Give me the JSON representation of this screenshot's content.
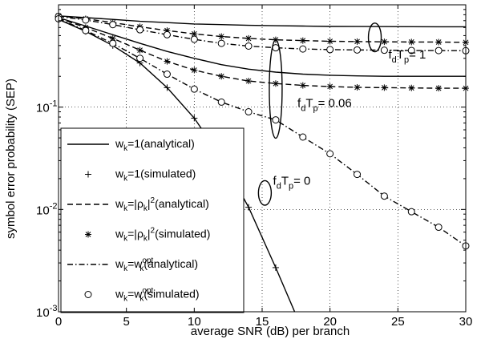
{
  "chart_data": {
    "type": "line",
    "title": "",
    "xlabel": "average SNR (dB) per branch",
    "ylabel": "symbol error probability (SEP)",
    "xlim": [
      0,
      30
    ],
    "ylim": [
      0.001,
      1
    ],
    "yscale": "log",
    "grid": true,
    "x_ticks": [
      "0",
      "5",
      "10",
      "15",
      "20",
      "25",
      "30"
    ],
    "y_ticks": [
      {
        "base": "10",
        "exp": "-3"
      },
      {
        "base": "10",
        "exp": "-2"
      },
      {
        "base": "10",
        "exp": "-1"
      }
    ],
    "legend_position": "bottom-left",
    "series": [
      {
        "name": "w_k=1(analytical)",
        "legend": {
          "a": "w",
          "a_sub": "k",
          "b": "=1(analytical)"
        },
        "style": "solid",
        "marker": "none",
        "group": "wk1",
        "curves": [
          {
            "x": [
              0,
              2,
              4,
              6,
              8,
              10,
              12,
              14,
              16,
              18,
              20,
              22,
              24,
              26,
              28,
              30
            ],
            "y": [
              0.78,
              0.75,
              0.72,
              0.69,
              0.67,
              0.65,
              0.64,
              0.63,
              0.625,
              0.62,
              0.615,
              0.613,
              0.612,
              0.611,
              0.61,
              0.61
            ]
          },
          {
            "x": [
              0,
              2,
              4,
              6,
              8,
              10,
              12,
              14,
              16,
              18,
              20,
              22,
              24,
              26,
              28,
              30
            ],
            "y": [
              0.75,
              0.62,
              0.51,
              0.42,
              0.35,
              0.3,
              0.26,
              0.235,
              0.22,
              0.21,
              0.205,
              0.202,
              0.2,
              0.2,
              0.2,
              0.2
            ]
          },
          {
            "x": [
              0,
              2,
              4,
              6,
              8,
              10,
              12,
              14,
              16,
              18,
              19.6
            ],
            "y": [
              0.72,
              0.55,
              0.4,
              0.27,
              0.155,
              0.078,
              0.032,
              0.0105,
              0.0027,
              0.00065,
              0.001
            ]
          }
        ]
      },
      {
        "name": "w_k=1(simulated)",
        "legend": {
          "a": "w",
          "a_sub": "k",
          "b": "=1(simulated)"
        },
        "style": "none",
        "marker": "plus",
        "group": "wk1",
        "points": {
          "x": [
            0,
            2,
            4,
            6,
            8,
            10,
            12,
            14,
            16,
            18
          ],
          "y": [
            0.72,
            0.55,
            0.4,
            0.27,
            0.155,
            0.078,
            0.032,
            0.0105,
            0.0027,
            0.00065
          ]
        }
      },
      {
        "name": "w_k=|ρ_k|^2(analytical)",
        "legend": {
          "a": "w",
          "a_sub": "k",
          "b": "=|ρ",
          "b_sub": "k",
          "c": "|",
          "c_sup": "2",
          "d": "(analytical)"
        },
        "style": "dashed",
        "marker": "none",
        "group": "rho",
        "curves": [
          {
            "x": [
              0,
              2,
              4,
              6,
              8,
              10,
              12,
              14,
              16,
              18,
              20,
              22,
              24,
              26,
              28,
              30
            ],
            "y": [
              0.78,
              0.73,
              0.67,
              0.61,
              0.56,
              0.52,
              0.49,
              0.47,
              0.455,
              0.447,
              0.44,
              0.437,
              0.435,
              0.433,
              0.432,
              0.43
            ]
          },
          {
            "x": [
              0,
              2,
              4,
              6,
              8,
              10,
              12,
              14,
              16,
              18,
              20,
              22,
              24,
              26,
              28,
              30
            ],
            "y": [
              0.74,
              0.6,
              0.47,
              0.36,
              0.28,
              0.23,
              0.2,
              0.18,
              0.17,
              0.163,
              0.159,
              0.156,
              0.155,
              0.154,
              0.153,
              0.153
            ]
          }
        ]
      },
      {
        "name": "w_k=|ρ_k|^2(simulated)",
        "legend": {
          "a": "w",
          "a_sub": "k",
          "b": "=|ρ",
          "b_sub": "k",
          "c": "|",
          "c_sup": "2",
          "d": "(simulated)"
        },
        "style": "none",
        "marker": "asterisk",
        "group": "rho",
        "points": {
          "x": [
            0,
            2,
            4,
            6,
            8,
            10,
            12,
            14,
            16,
            18,
            20,
            22,
            24,
            26,
            28,
            30,
            0,
            2,
            4,
            6,
            8,
            10,
            12,
            14,
            16,
            18,
            20,
            22,
            24,
            26,
            28,
            30
          ],
          "y": [
            0.78,
            0.73,
            0.67,
            0.61,
            0.56,
            0.52,
            0.49,
            0.47,
            0.455,
            0.447,
            0.44,
            0.437,
            0.435,
            0.433,
            0.432,
            0.43,
            0.74,
            0.6,
            0.47,
            0.36,
            0.28,
            0.23,
            0.2,
            0.18,
            0.17,
            0.163,
            0.159,
            0.156,
            0.155,
            0.154,
            0.153,
            0.153
          ]
        }
      },
      {
        "name": "w_k=w_k^opt(analytical)",
        "legend": {
          "a": "w",
          "a_sub": "k",
          "b": "=w",
          "b_sub": "k",
          "b_sup": "opt",
          "c": "(analytical)"
        },
        "style": "dashdot",
        "marker": "none",
        "group": "opt",
        "curves": [
          {
            "x": [
              0,
              2,
              4,
              6,
              8,
              10,
              12,
              14,
              16,
              18,
              20,
              22,
              24,
              26,
              28,
              30
            ],
            "y": [
              0.77,
              0.71,
              0.64,
              0.57,
              0.51,
              0.46,
              0.42,
              0.395,
              0.38,
              0.37,
              0.365,
              0.362,
              0.36,
              0.358,
              0.357,
              0.356
            ]
          },
          {
            "x": [
              0,
              2,
              4,
              6,
              8,
              10,
              12,
              14,
              16,
              18,
              20,
              22,
              24,
              26,
              28,
              30
            ],
            "y": [
              0.73,
              0.56,
              0.42,
              0.3,
              0.21,
              0.15,
              0.112,
              0.09,
              0.075,
              0.051,
              0.035,
              0.022,
              0.0135,
              0.0095,
              0.0067,
              0.0044
            ]
          }
        ]
      },
      {
        "name": "w_k=w_k^opt(simulated)",
        "legend": {
          "a": "w",
          "a_sub": "k",
          "b": "=w",
          "b_sub": "k",
          "b_sup": "opt",
          "c": "(simulated)"
        },
        "style": "none",
        "marker": "circle",
        "group": "opt",
        "points": {
          "x": [
            0,
            2,
            4,
            6,
            8,
            10,
            12,
            14,
            16,
            18,
            20,
            22,
            24,
            26,
            28,
            30,
            0,
            2,
            4,
            6,
            8,
            10,
            12,
            14,
            16,
            18,
            20,
            22,
            24,
            26,
            28,
            30
          ],
          "y": [
            0.77,
            0.71,
            0.64,
            0.57,
            0.51,
            0.46,
            0.42,
            0.395,
            0.38,
            0.37,
            0.365,
            0.362,
            0.36,
            0.358,
            0.357,
            0.356,
            0.73,
            0.56,
            0.42,
            0.3,
            0.21,
            0.15,
            0.112,
            0.09,
            0.075,
            0.051,
            0.035,
            0.022,
            0.0135,
            0.0095,
            0.0067,
            0.0044
          ]
        }
      }
    ],
    "annotations": [
      {
        "name": "fdtp-1",
        "text_f": "f",
        "text_f_sub": "d",
        "text_t": "T",
        "text_t_sub": "p",
        "text_rest": "= 1",
        "label_at": [
          24.3,
          0.3
        ],
        "ellipse_at": [
          23.3,
          0.48
        ],
        "ellipse_ry_decades": 0.14
      },
      {
        "name": "fdtp-006",
        "text_f": "f",
        "text_f_sub": "d",
        "text_t": "T",
        "text_t_sub": "p",
        "text_rest": "= 0.06",
        "label_at": [
          17.6,
          0.1
        ],
        "ellipse_at": [
          16.0,
          0.15
        ],
        "ellipse_ry_decades": 0.48
      },
      {
        "name": "fdtp-0",
        "text_f": "f",
        "text_f_sub": "d",
        "text_t": "T",
        "text_t_sub": "p",
        "text_rest": "= 0",
        "label_at": [
          15.8,
          0.0175
        ],
        "ellipse_at": [
          15.2,
          0.0145
        ],
        "ellipse_ry_decades": 0.12
      }
    ]
  }
}
